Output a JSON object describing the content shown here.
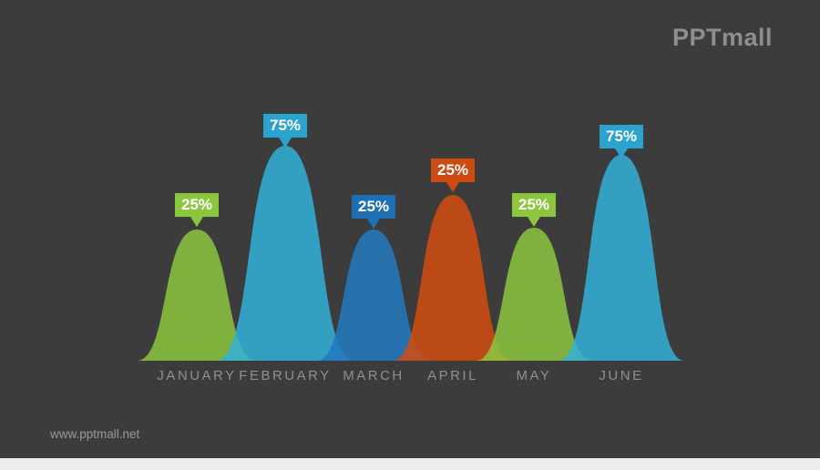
{
  "brand": {
    "logo": "PPTmall",
    "website": "www.pptmall.net"
  },
  "colors": {
    "background": "#3C3C3C",
    "footer_strip": "#ECECEC",
    "month_label_text": "#909090",
    "logo_text": "#8E8E8E",
    "website_text": "#9A9A9A",
    "callout_text": "#FFFFFF"
  },
  "chart_data": {
    "type": "area",
    "title": "",
    "categories": [
      "JANUARY",
      "FEBRUARY",
      "MARCH",
      "APRIL",
      "MAY",
      "JUNE"
    ],
    "values": [
      25,
      75,
      25,
      25,
      25,
      75
    ],
    "value_labels": [
      "25%",
      "75%",
      "25%",
      "25%",
      "25%",
      "75%"
    ],
    "series_colors": [
      "#8CC63F",
      "#33B1D8",
      "#2279C0",
      "#D24C10",
      "#8CC63F",
      "#33B1D8"
    ],
    "callout_colors": [
      "#8CC63F",
      "#2BA3CF",
      "#1F6FB5",
      "#CC4B10",
      "#8CC63F",
      "#2BA3CF"
    ],
    "fill_opacity": 0.85,
    "ylim": [
      0,
      100
    ],
    "legend": "none",
    "grid": false,
    "x_axis_labels_position": "below-baseline"
  }
}
